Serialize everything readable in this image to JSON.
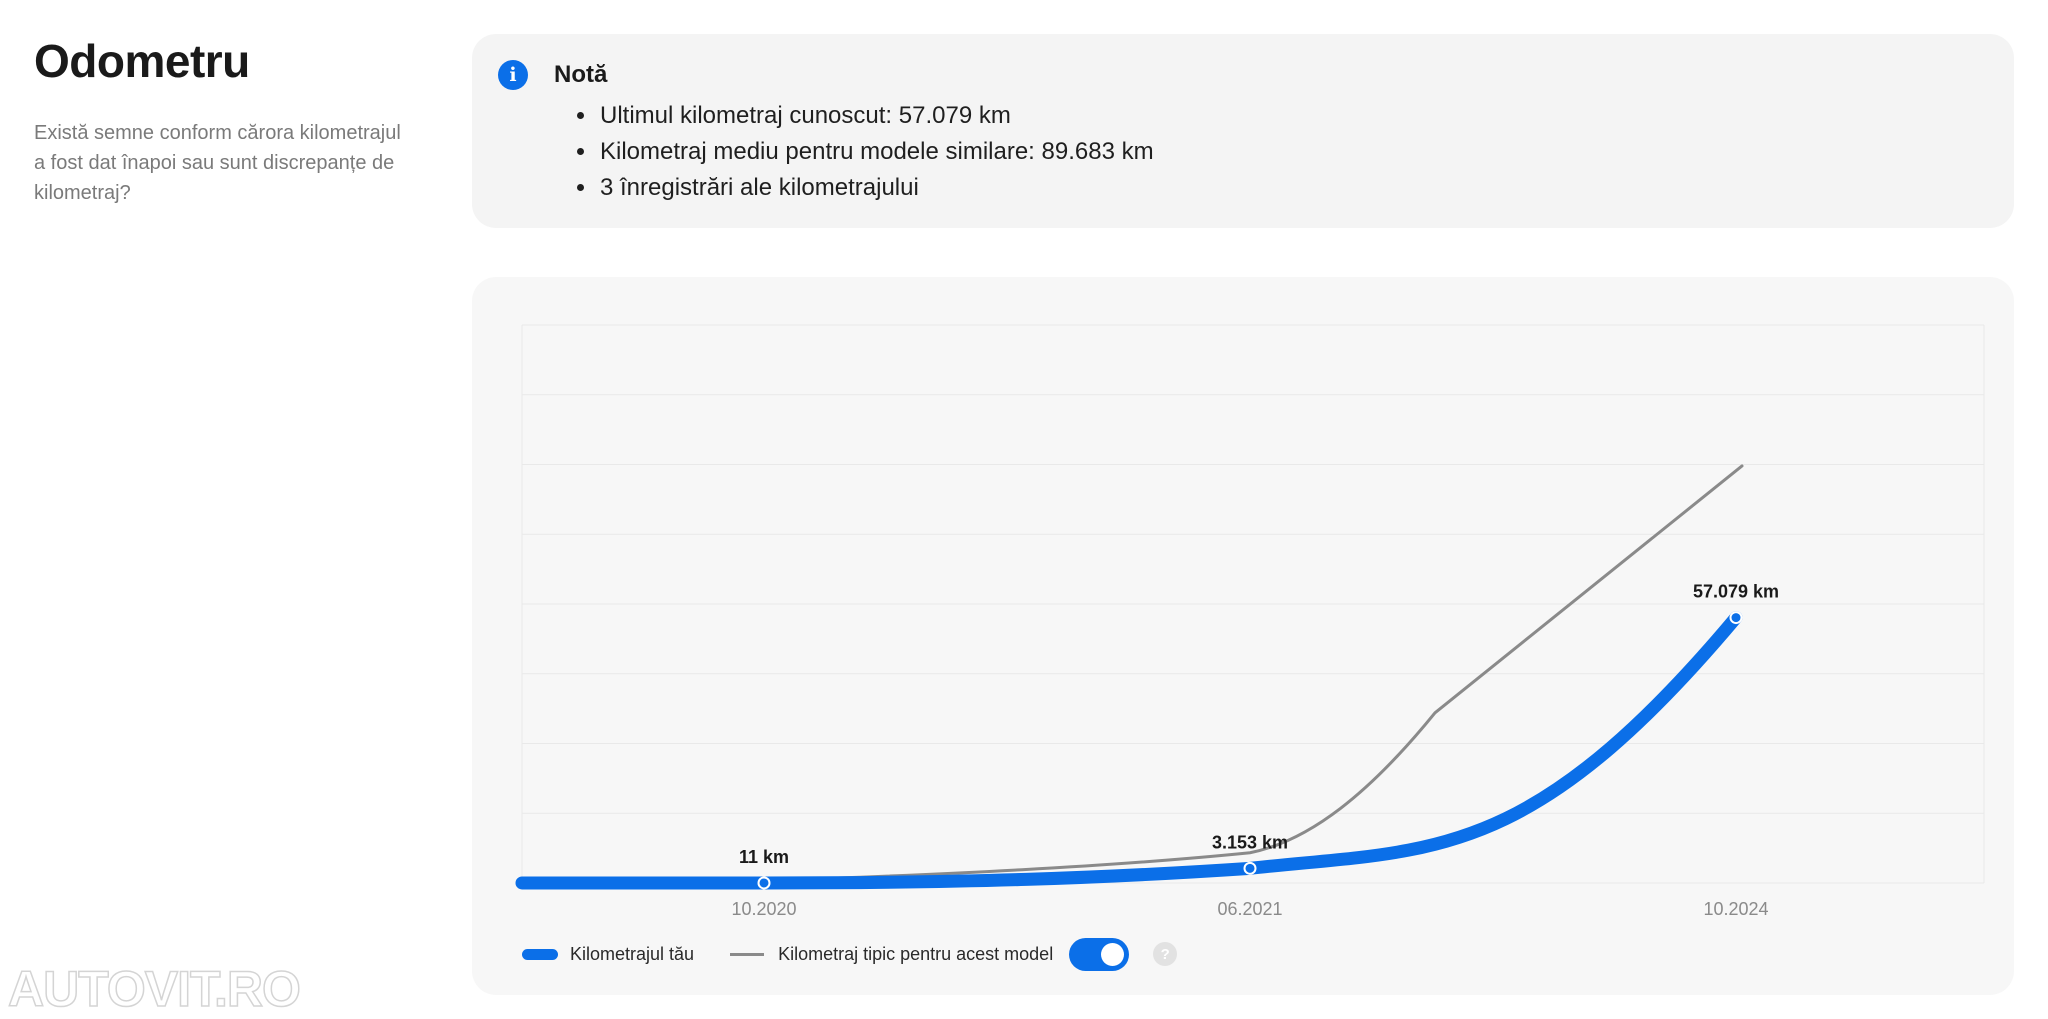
{
  "page": {
    "title": "Odometru",
    "subtitle": "Există semne conform cărora kilometrajul a fost dat înapoi sau sunt discrepanțe de kilometraj?"
  },
  "note": {
    "title": "Notă",
    "icon": "info-icon",
    "items": [
      "Ultimul kilometraj cunoscut: 57.079 km",
      "Kilometraj mediu pentru modele similare: 89.683 km",
      "3 înregistrări ale kilometrajului"
    ]
  },
  "colors": {
    "accent": "#0b6fe8",
    "typical_line": "#8a8a8a",
    "card_background": "#f4f4f4"
  },
  "chart_data": {
    "type": "line",
    "x_ticks": [
      "10.2020",
      "06.2021",
      "10.2024"
    ],
    "y_range": [
      0,
      120000
    ],
    "grid": true,
    "legend_position": "bottom-left",
    "series": [
      {
        "name": "Kilometrajul tău",
        "x": [
          "10.2020",
          "06.2021",
          "10.2024"
        ],
        "values": [
          11,
          3153,
          57079
        ],
        "labels": [
          "11 km",
          "3.153 km",
          "57.079 km"
        ]
      },
      {
        "name": "Kilometraj tipic pentru acest model",
        "x": [
          "10.2020",
          "06.2021",
          "10.2024"
        ],
        "values": [
          500,
          6500,
          89683
        ]
      }
    ]
  },
  "legend": {
    "your_mileage": "Kilometrajul tău",
    "typical_mileage": "Kilometraj tipic pentru acest model",
    "toggle_on": true,
    "help": "?"
  },
  "watermark": "AUTOVIT.RO"
}
